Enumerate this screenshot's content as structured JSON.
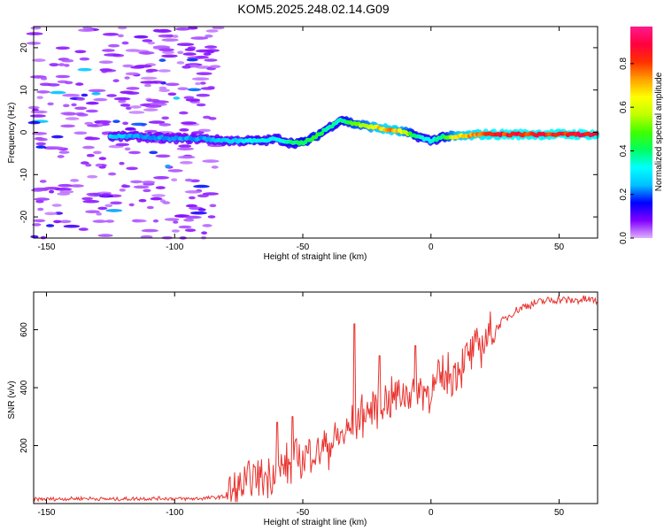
{
  "chart_data": [
    {
      "type": "heatmap",
      "title": "KOM5.2025.248.02.14.G09",
      "xlabel": "Height of straight line (km)",
      "ylabel": "Frequency (Hz)",
      "xlim": [
        -155,
        65
      ],
      "ylim": [
        -25,
        25
      ],
      "xticks": [
        -150,
        -100,
        -50,
        0,
        50
      ],
      "yticks": [
        -20,
        -10,
        0,
        10,
        20
      ],
      "xtick_labels": [
        "-150",
        "-100",
        "-50",
        "0",
        "50"
      ],
      "ytick_labels": [
        "-20",
        "-10",
        "0",
        "10",
        "20"
      ],
      "colorbar": {
        "label": "Normalized spectral amplitude",
        "range": [
          0,
          0.97
        ],
        "ticks": [
          0,
          0.2,
          0.4,
          0.6,
          0.8
        ],
        "tick_labels": [
          "0.0",
          "0.2",
          "0.4",
          "0.6",
          "0.8"
        ],
        "colormap": [
          "#e0b0ff",
          "#8000ff",
          "#0000ff",
          "#00c0ff",
          "#00ffff",
          "#00ff60",
          "#40ff00",
          "#c0ff00",
          "#ffff00",
          "#ffa000",
          "#ff3000",
          "#ff0040",
          "#ff1a8c"
        ]
      },
      "ridge": {
        "x": [
          -125,
          -115,
          -100,
          -90,
          -80,
          -75,
          -70,
          -65,
          -60,
          -55,
          -50,
          -45,
          -40,
          -35,
          -30,
          -25,
          -20,
          -15,
          -10,
          -5,
          0,
          5,
          10,
          20,
          30,
          40,
          50,
          60,
          65
        ],
        "freq": [
          -1,
          -1,
          -1.5,
          -1.5,
          -2,
          -2,
          -2,
          -2,
          -1.5,
          -2.5,
          -2.5,
          -1,
          1,
          3,
          2,
          1.5,
          1,
          0.5,
          0,
          -1,
          -2,
          -1,
          -1,
          -0.5,
          -0.5,
          -0.5,
          -0.5,
          -0.5,
          -0.5
        ],
        "amplitude": [
          0.3,
          0.25,
          0.25,
          0.25,
          0.3,
          0.3,
          0.35,
          0.35,
          0.35,
          0.4,
          0.45,
          0.5,
          0.4,
          0.4,
          0.55,
          0.6,
          0.75,
          0.8,
          0.6,
          0.4,
          0.35,
          0.45,
          0.7,
          0.85,
          0.9,
          0.88,
          0.9,
          0.92,
          0.92
        ]
      }
    },
    {
      "type": "line",
      "xlabel": "Height of straight line (km)",
      "ylabel": "SNR (v/v)",
      "xlim": [
        -155,
        65
      ],
      "ylim": [
        0,
        730
      ],
      "xticks": [
        -150,
        -100,
        -50,
        0,
        50
      ],
      "yticks": [
        200,
        400,
        600
      ],
      "xtick_labels": [
        "-150",
        "-100",
        "-50",
        "0",
        "50"
      ],
      "ytick_labels": [
        "200",
        "400",
        "600"
      ],
      "color": "#e8332f",
      "series": [
        {
          "name": "SNR",
          "x": [
            -155,
            -145,
            -135,
            -125,
            -115,
            -105,
            -95,
            -85,
            -80,
            -76,
            -72,
            -68,
            -64,
            -60,
            -56,
            -52,
            -48,
            -44,
            -40,
            -36,
            -32,
            -30,
            -28,
            -24,
            -20,
            -16,
            -12,
            -8,
            -4,
            0,
            4,
            8,
            12,
            16,
            20,
            24,
            28,
            32,
            36,
            40,
            45,
            50,
            55,
            60,
            65
          ],
          "y": [
            15,
            16,
            18,
            15,
            17,
            18,
            16,
            20,
            25,
            40,
            60,
            90,
            100,
            110,
            130,
            150,
            170,
            190,
            200,
            230,
            250,
            280,
            290,
            320,
            340,
            360,
            380,
            390,
            400,
            380,
            430,
            450,
            480,
            520,
            550,
            590,
            630,
            660,
            680,
            690,
            700,
            705,
            700,
            705,
            700
          ]
        }
      ],
      "spikes": [
        {
          "x": -30,
          "y": 620
        },
        {
          "x": -6,
          "y": 545
        },
        {
          "x": -20,
          "y": 510
        },
        {
          "x": -60,
          "y": 280
        },
        {
          "x": -54,
          "y": 300
        }
      ]
    }
  ]
}
